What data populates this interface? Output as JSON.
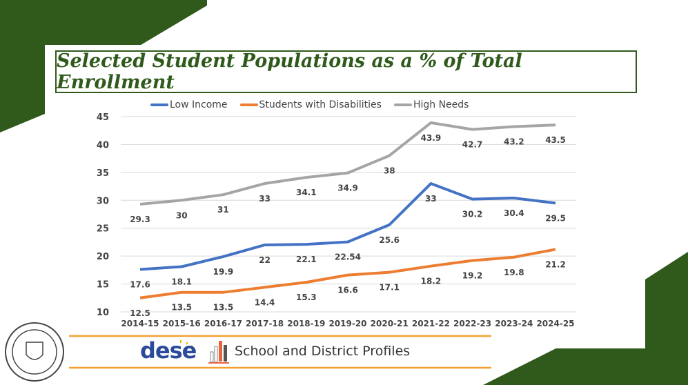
{
  "chart_data": {
    "type": "line",
    "title": "Selected Student Populations as a % of Total Enrollment",
    "categories": [
      "2014-15",
      "2015-16",
      "2016-17",
      "2017-18",
      "2018-19",
      "2019-20",
      "2020-21",
      "2021-22",
      "2022-23",
      "2023-24",
      "2024-25"
    ],
    "ylim": [
      10,
      45
    ],
    "yticks": [
      "10",
      "15",
      "20",
      "25",
      "30",
      "35",
      "40",
      "45"
    ],
    "grid": true,
    "legend": "top",
    "series": [
      {
        "name": "Low Income",
        "color": "#4472c4",
        "values": [
          17.6,
          18.1,
          19.9,
          22,
          22.1,
          22.54,
          25.6,
          33,
          30.2,
          30.4,
          29.5
        ]
      },
      {
        "name": "Students with Disabilities",
        "color": "#ed7d31",
        "values": [
          12.5,
          13.5,
          13.5,
          14.4,
          15.3,
          16.6,
          17.1,
          18.2,
          19.2,
          19.8,
          21.2
        ]
      },
      {
        "name": "High Needs",
        "color": "#a5a5a5",
        "values": [
          29.3,
          30,
          31,
          33,
          34.1,
          34.9,
          38,
          43.9,
          42.7,
          43.2,
          43.5
        ]
      }
    ]
  },
  "footer": {
    "dese_logo": "dese",
    "profiles": "School and District Profiles",
    "seal": "Town of Dartmouth Massachusetts School District"
  },
  "colors": {
    "green": "#2f5a1b",
    "orange": "#f4a030"
  }
}
